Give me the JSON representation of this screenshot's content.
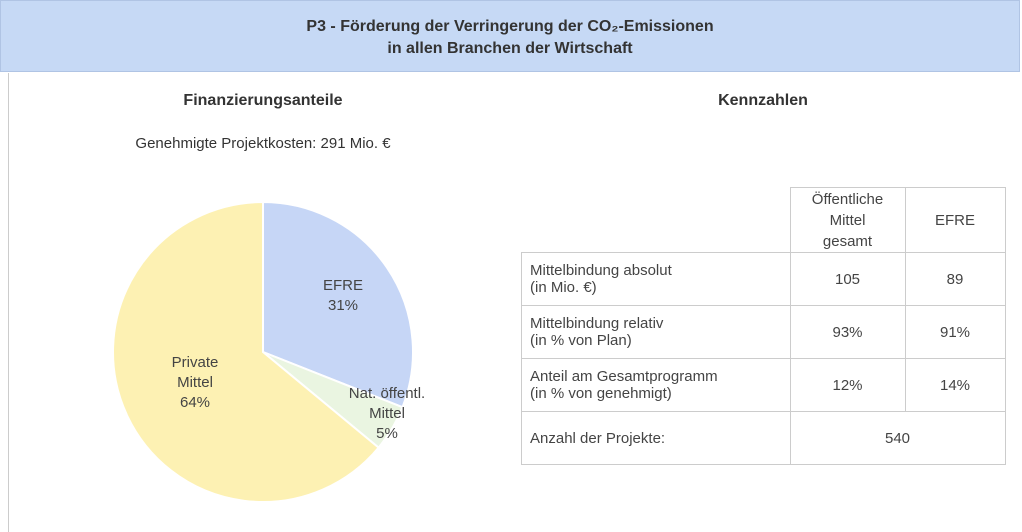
{
  "header": {
    "title": [
      "P3 - Förderung der Verringerung der CO₂-Emissionen",
      "in allen Branchen der Wirtschaft"
    ]
  },
  "chart_data": {
    "type": "pie",
    "title": "Finanzierungsanteile",
    "subtitle": "Genehmigte Projektkosten: 291 Mio. €",
    "categories": [
      "EFRE",
      "Nat. öffentl. Mittel",
      "Private Mittel"
    ],
    "values": [
      31,
      5,
      64
    ],
    "value_labels": [
      "31%",
      "5%",
      "64%"
    ],
    "colors": [
      "#c6d6f6",
      "#eaf5e1",
      "#fdf1b3"
    ]
  },
  "table": {
    "title": "Kennzahlen",
    "columns": [
      "Öffentliche Mittel gesamt",
      "EFRE"
    ],
    "rows": [
      {
        "label": "Mittelbindung absolut",
        "note": "(in Mio. €)",
        "values": [
          105,
          89
        ]
      },
      {
        "label": "Mittelbindung relativ",
        "note": "(in % von Plan)",
        "values": [
          "93%",
          "91%"
        ]
      },
      {
        "label": "Anteil am Gesamtprogramm",
        "note": "(in % von genehmigt)",
        "values": [
          "12%",
          "14%"
        ]
      },
      {
        "label": "Anzahl der Projekte:",
        "values": [
          540
        ]
      }
    ]
  }
}
